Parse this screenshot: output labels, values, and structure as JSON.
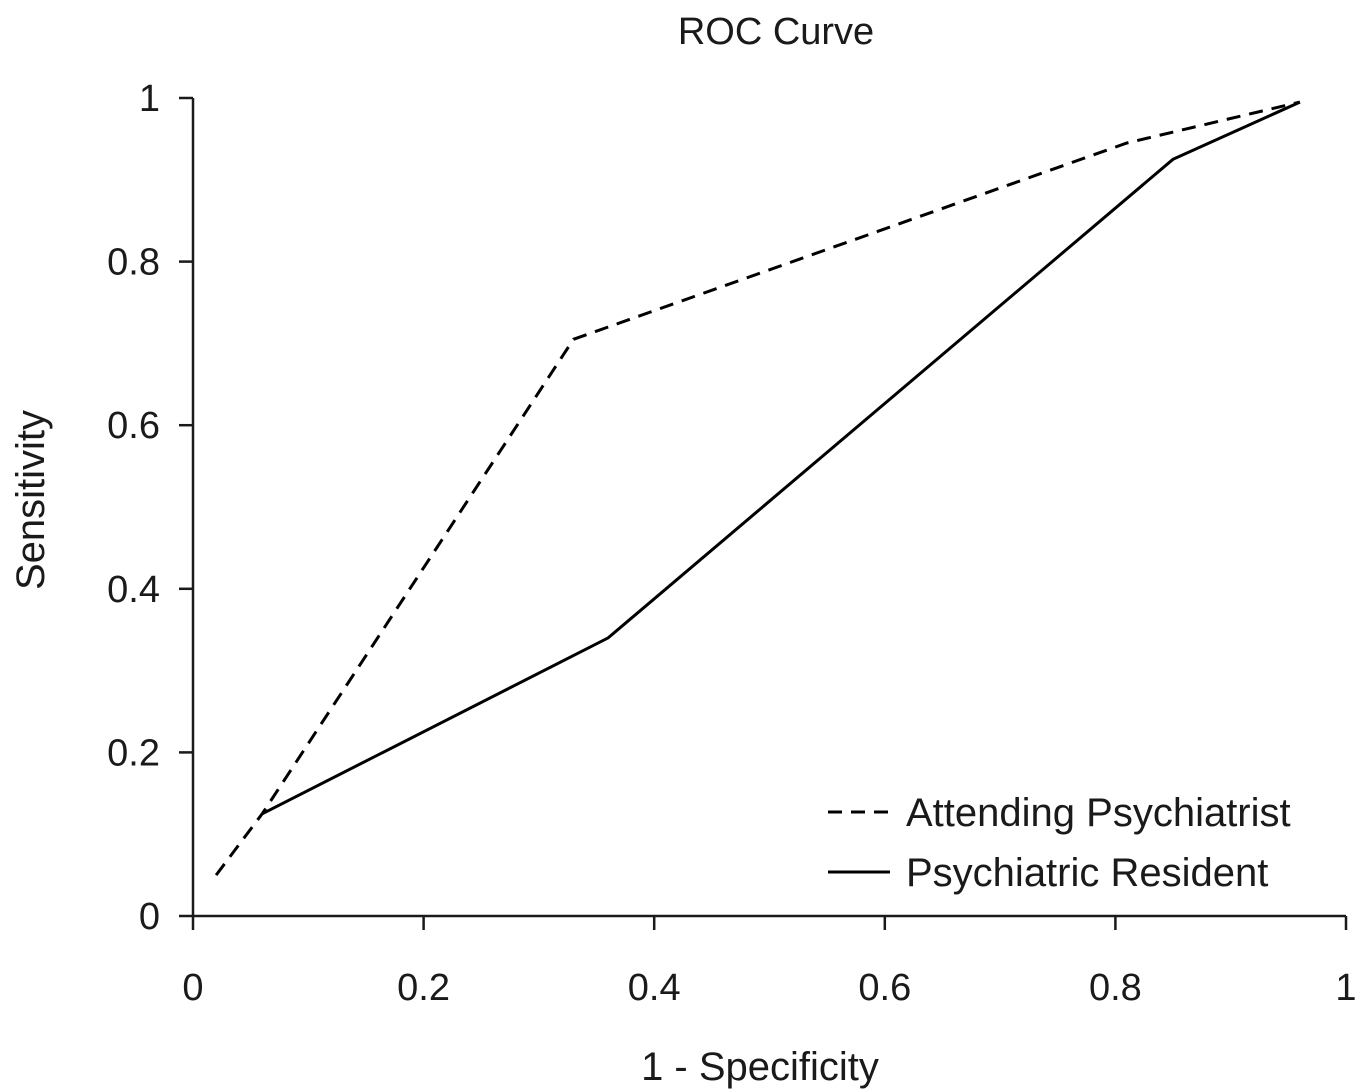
{
  "chart_data": {
    "type": "line",
    "title": "ROC Curve",
    "xlabel": "1 - Specificity",
    "ylabel": "Sensitivity",
    "xlim": [
      0,
      1
    ],
    "ylim": [
      0,
      1
    ],
    "x_ticks": [
      "0",
      "0.2",
      "0.4",
      "0.6",
      "0.8",
      "1"
    ],
    "y_ticks": [
      "0",
      "0.2",
      "0.4",
      "0.6",
      "0.8",
      "1"
    ],
    "grid": false,
    "legend_position": "bottom-right",
    "series": [
      {
        "name": "Attending Psychiatrist",
        "style": "dashed",
        "color": "#000000",
        "x": [
          0.02,
          0.06,
          0.33,
          0.81,
          0.96
        ],
        "y": [
          0.05,
          0.125,
          0.705,
          0.945,
          0.995
        ]
      },
      {
        "name": "Psychiatric Resident",
        "style": "solid",
        "color": "#000000",
        "x": [
          0.06,
          0.36,
          0.85,
          0.96
        ],
        "y": [
          0.125,
          0.34,
          0.925,
          0.995
        ]
      }
    ]
  }
}
